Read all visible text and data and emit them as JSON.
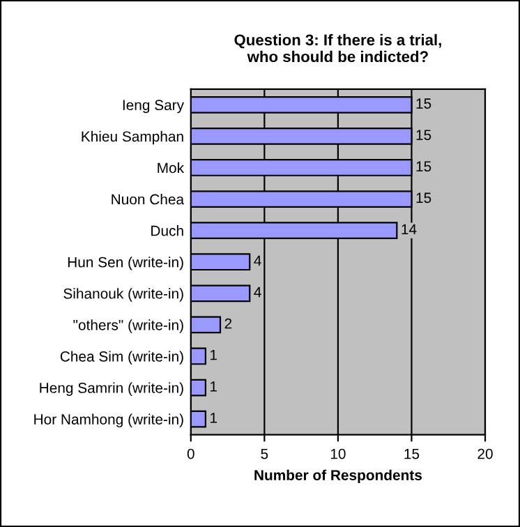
{
  "chart_data": {
    "type": "bar",
    "orientation": "horizontal",
    "title": "Question 3: If there is a trial,\nwho should be indicted?",
    "xlabel": "Number of Respondents",
    "categories": [
      "Ieng Sary",
      "Khieu Samphan",
      "Mok",
      "Nuon Chea",
      "Duch",
      "Hun Sen (write-in)",
      "Sihanouk (write-in)",
      "\"others\" (write-in)",
      "Chea Sim (write-in)",
      "Heng Samrin (write-in)",
      "Hor Namhong (write-in)"
    ],
    "values": [
      15,
      15,
      15,
      15,
      14,
      4,
      4,
      2,
      1,
      1,
      1
    ],
    "color": "#9999ff",
    "xlim": [
      0,
      20
    ],
    "xticks": [
      0,
      5,
      10,
      15,
      20
    ],
    "grid": "x",
    "data_labels": true,
    "legend": false
  }
}
